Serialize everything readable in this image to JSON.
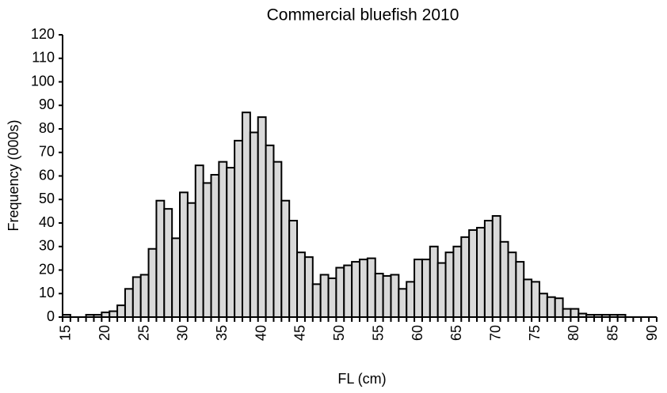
{
  "chart_data": {
    "type": "bar",
    "title": "Commercial bluefish 2010",
    "x_label": "FL (cm)",
    "y_label": "Frequency (000s)",
    "categories": [
      15,
      null,
      null,
      null,
      null,
      20,
      null,
      null,
      null,
      null,
      25,
      null,
      null,
      null,
      null,
      30,
      null,
      null,
      null,
      null,
      35,
      null,
      null,
      null,
      null,
      40,
      null,
      null,
      null,
      null,
      45,
      null,
      null,
      null,
      null,
      50,
      null,
      null,
      null,
      null,
      55,
      null,
      null,
      null,
      null,
      60,
      null,
      null,
      null,
      null,
      65,
      null,
      null,
      null,
      null,
      70,
      null,
      null,
      null,
      null,
      75,
      null,
      null,
      null,
      null,
      80,
      null,
      null,
      null,
      null,
      85,
      null,
      null,
      null,
      null,
      90
    ],
    "values": [
      1,
      0,
      0,
      1,
      1,
      2,
      2.5,
      5,
      12,
      17,
      18,
      29,
      49.5,
      46,
      33.5,
      53,
      48.5,
      64.5,
      57,
      60.5,
      66,
      63.5,
      75,
      87,
      78.5,
      85,
      73,
      66,
      49.5,
      41,
      27.5,
      25.5,
      14,
      18,
      16.5,
      21,
      22,
      23.5,
      24.5,
      25,
      18.5,
      17.5,
      18,
      12,
      15,
      24.5,
      24.5,
      30,
      23,
      27.5,
      30,
      34,
      37,
      38,
      41,
      43,
      32,
      27.5,
      23.5,
      16,
      15,
      10,
      8.5,
      8,
      3.5,
      3.5,
      1.5,
      1,
      1,
      1,
      1,
      1,
      0,
      0,
      0,
      0
    ],
    "color": "#d9d9d9",
    "ylim": [
      0,
      120
    ],
    "yticks": [
      0,
      10,
      20,
      30,
      40,
      50,
      60,
      70,
      80,
      90,
      100,
      110,
      120
    ],
    "grid": false
  }
}
